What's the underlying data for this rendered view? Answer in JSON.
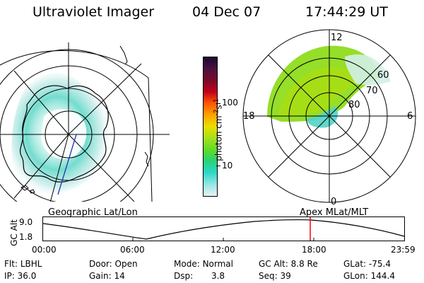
{
  "header": {
    "title": "Ultraviolet Imager",
    "date": "04 Dec 07",
    "time": "17:44:29 UT"
  },
  "geo_panel": {
    "label": "Geographic Lat/Lon",
    "emission_color": "#4fd9d0"
  },
  "colorbar": {
    "unit_label": "photon cm",
    "unit_exp1": "-2",
    "unit_mid": "s",
    "unit_exp2": "-1",
    "ticks": [
      "100",
      "10"
    ],
    "colors": [
      "#1a0a2e",
      "#4b1040",
      "#7a0a28",
      "#c2001a",
      "#ff5500",
      "#ffa500",
      "#e9e000",
      "#a8e01a",
      "#5cdc28",
      "#28d27a",
      "#2ad8c8",
      "#9ae6e6",
      "#e6f2f2"
    ]
  },
  "apex_panel": {
    "label": "Apex MLat/MLT",
    "mlt_labels": {
      "top": "12",
      "left": "18",
      "right": "6",
      "bottom": "0"
    },
    "lat_labels": [
      "60",
      "70",
      "80"
    ]
  },
  "altitude_plot": {
    "ylabel": "GC Alt",
    "yticks": [
      "9.0",
      "1.8"
    ],
    "xticks": [
      "00:00",
      "06:00",
      "12:00",
      "18:00",
      "23:59"
    ],
    "marker_time": "17:44:29",
    "marker_color": "#ff0000"
  },
  "status": {
    "row1": [
      {
        "name": "filter",
        "label": "Flt:",
        "value": "LBHL"
      },
      {
        "name": "door",
        "label": "Door:",
        "value": "Open"
      },
      {
        "name": "mode",
        "label": "Mode:",
        "value": "Normal"
      },
      {
        "name": "gc-alt",
        "label": "GC Alt:",
        "value": "8.8 Re"
      },
      {
        "name": "glat",
        "label": "GLat:",
        "value": "-75.4"
      }
    ],
    "row2": [
      {
        "name": "ip",
        "label": "IP:",
        "value": "36.0"
      },
      {
        "name": "gain",
        "label": "Gain:",
        "value": "14"
      },
      {
        "name": "dsp",
        "label": "Dsp:",
        "value": "3.8"
      },
      {
        "name": "seq",
        "label": "Seq:",
        "value": "39"
      },
      {
        "name": "glon",
        "label": "GLon:",
        "value": "144.4"
      }
    ]
  }
}
